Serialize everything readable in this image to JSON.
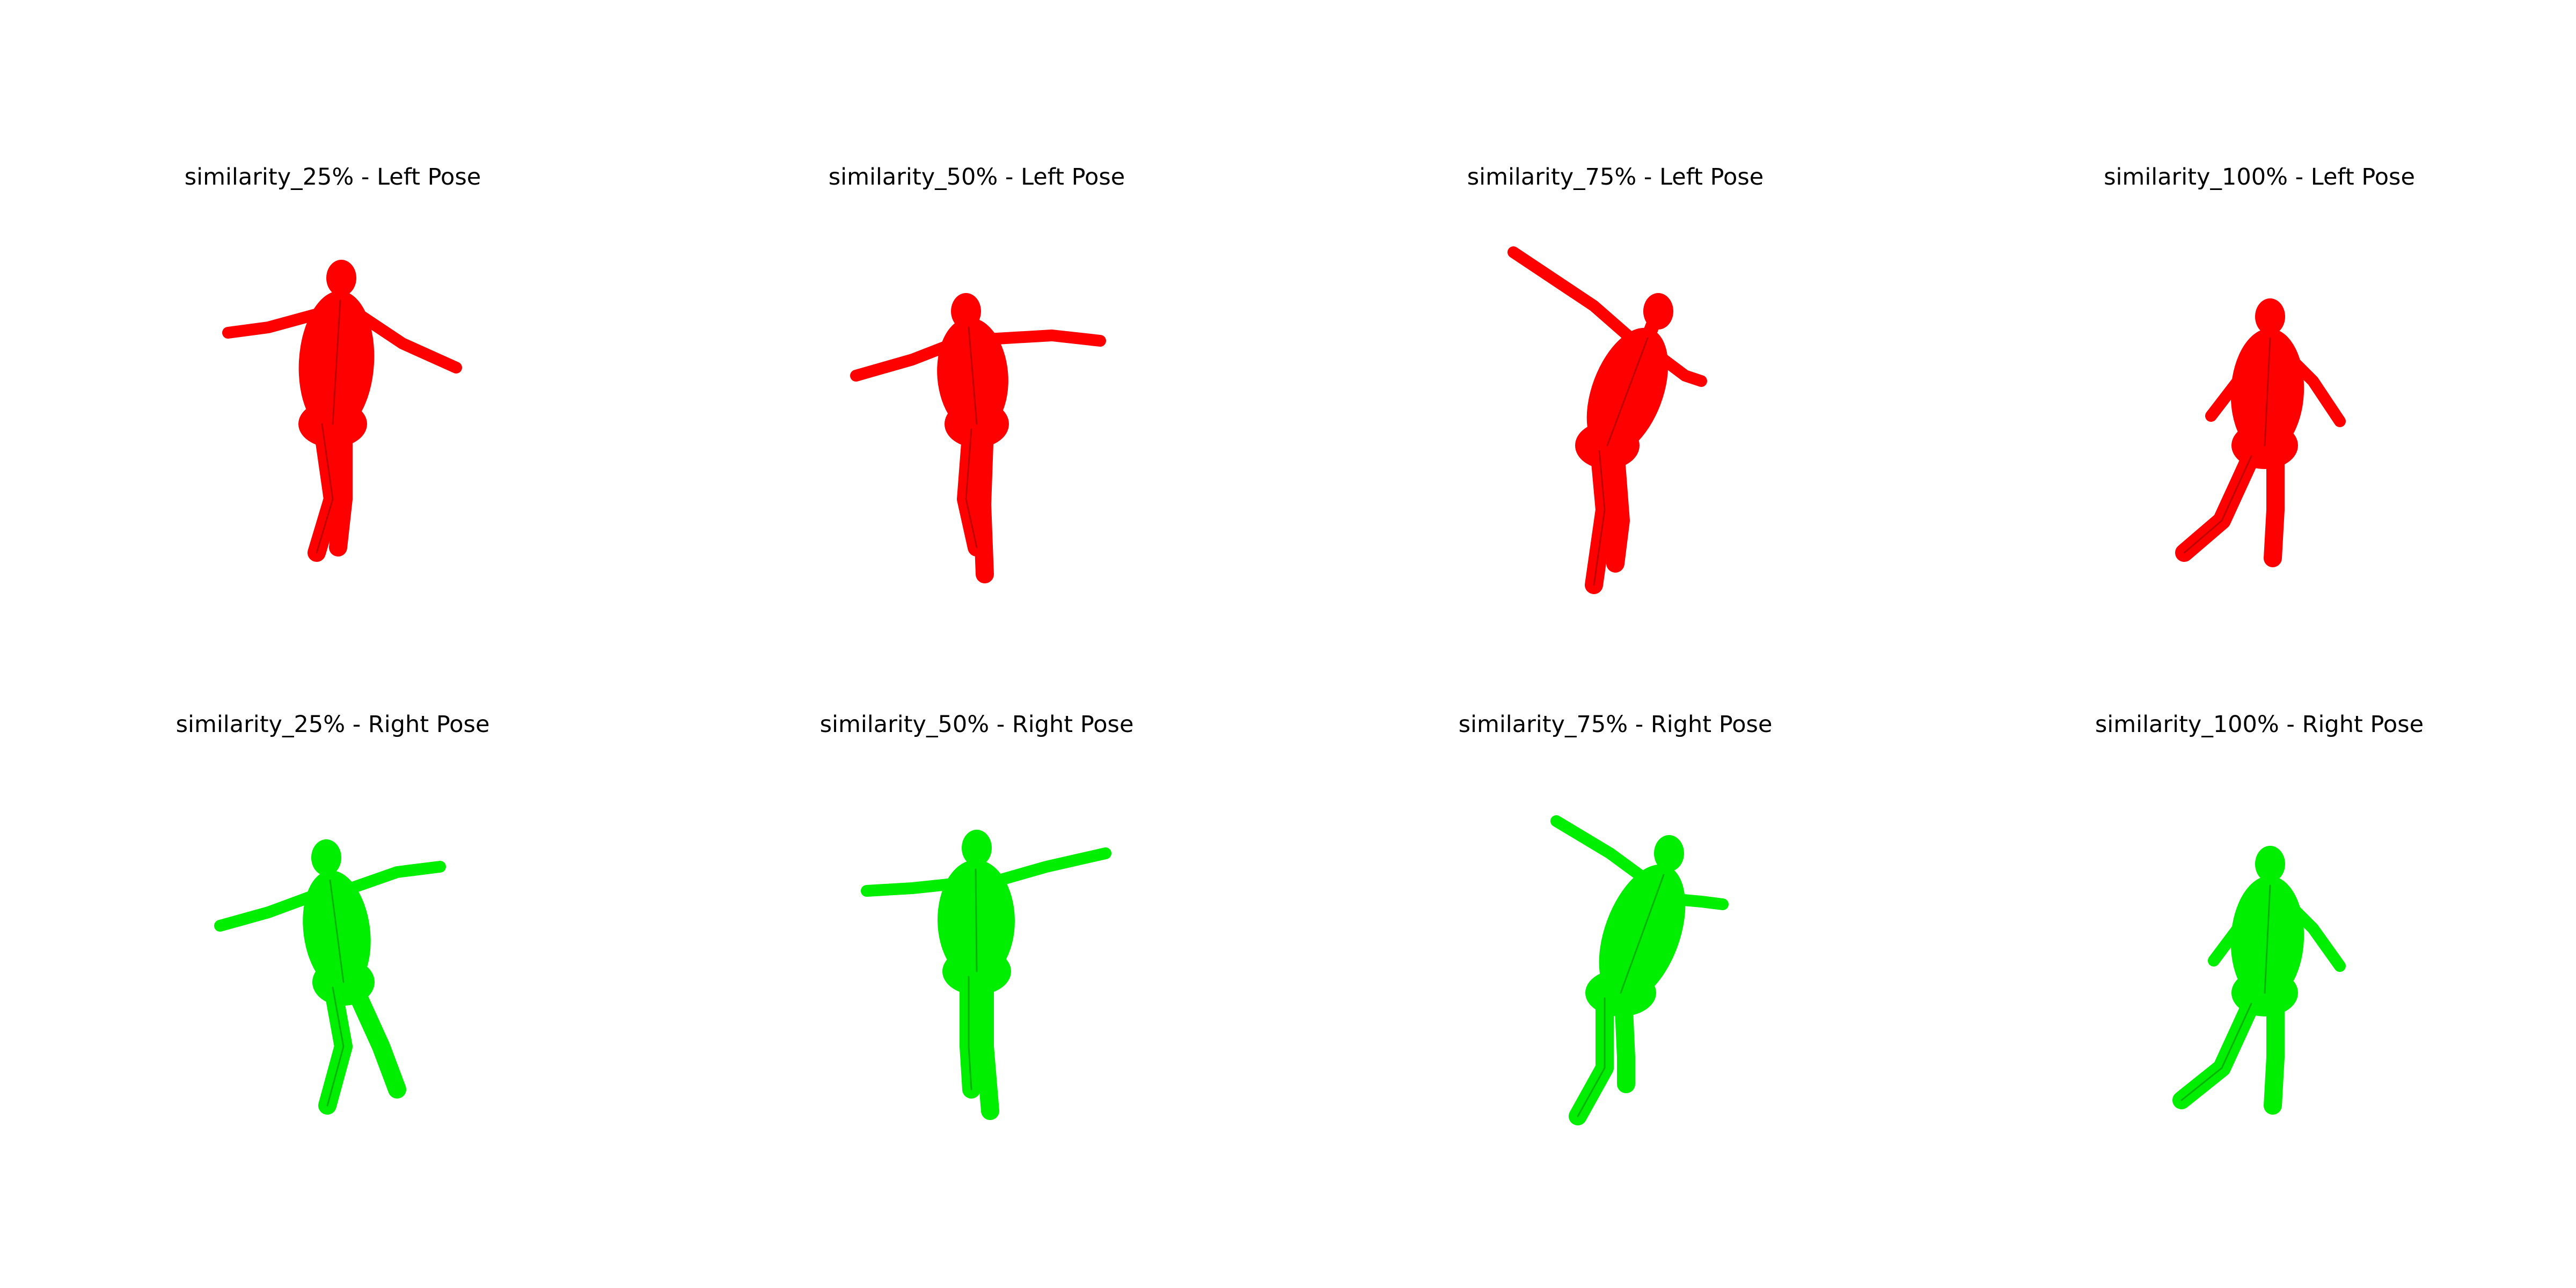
{
  "colors": {
    "left": "#ff0000",
    "right": "#00ee00",
    "background": "#ffffff"
  },
  "panels": [
    {
      "title": "similarity_25% - Left Pose",
      "color": "left"
    },
    {
      "title": "similarity_50% - Left Pose",
      "color": "left"
    },
    {
      "title": "similarity_75% - Left Pose",
      "color": "left"
    },
    {
      "title": "similarity_100% - Left Pose",
      "color": "left"
    },
    {
      "title": "similarity_25% - Right Pose",
      "color": "right"
    },
    {
      "title": "similarity_50% - Right Pose",
      "color": "right"
    },
    {
      "title": "similarity_75% - Right Pose",
      "color": "right"
    },
    {
      "title": "similarity_100% - Right Pose",
      "color": "right"
    }
  ]
}
